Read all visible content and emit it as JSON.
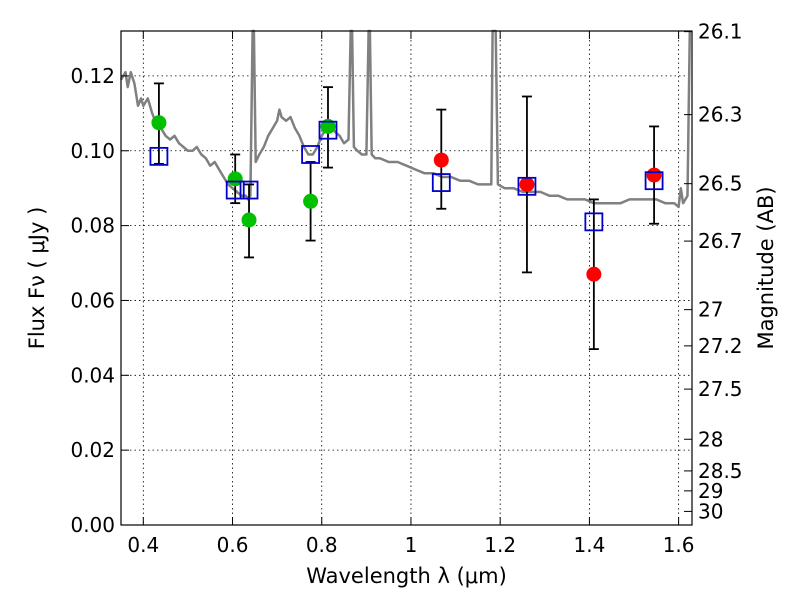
{
  "chart_data": {
    "type": "scatter",
    "title": "",
    "xlabel": "Wavelength  λ (μm)",
    "ylabel": "Flux  Fν  ( μJy )",
    "y2label": "Magnitude (AB)",
    "xlim": [
      0.35,
      1.63
    ],
    "ylim": [
      0.0,
      0.132
    ],
    "grid": true,
    "legend": "none",
    "xticks": [
      {
        "v": 0.4,
        "label": "0.4"
      },
      {
        "v": 0.6,
        "label": "0.6"
      },
      {
        "v": 0.8,
        "label": "0.8"
      },
      {
        "v": 1.0,
        "label": "1"
      },
      {
        "v": 1.2,
        "label": "1.2"
      },
      {
        "v": 1.4,
        "label": "1.4"
      },
      {
        "v": 1.6,
        "label": "1.6"
      }
    ],
    "yticks": [
      {
        "v": 0.0,
        "label": "0.00"
      },
      {
        "v": 0.02,
        "label": "0.02"
      },
      {
        "v": 0.04,
        "label": "0.04"
      },
      {
        "v": 0.06,
        "label": "0.06"
      },
      {
        "v": 0.08,
        "label": "0.08"
      },
      {
        "v": 0.1,
        "label": "0.10"
      },
      {
        "v": 0.12,
        "label": "0.12"
      }
    ],
    "mag_ticks": [
      {
        "mag": 26.1,
        "label": "26.1"
      },
      {
        "mag": 26.3,
        "label": "26.3"
      },
      {
        "mag": 26.5,
        "label": "26.5"
      },
      {
        "mag": 26.7,
        "label": "26.7"
      },
      {
        "mag": 27.0,
        "label": "27"
      },
      {
        "mag": 27.2,
        "label": "27.2"
      },
      {
        "mag": 27.5,
        "label": "27.5"
      },
      {
        "mag": 28.0,
        "label": "28"
      },
      {
        "mag": 28.5,
        "label": "28.5"
      },
      {
        "mag": 29.0,
        "label": "29"
      },
      {
        "mag": 30.0,
        "label": "30"
      }
    ],
    "model_spectrum": {
      "color": "#808080",
      "points": [
        [
          0.35,
          0.119
        ],
        [
          0.36,
          0.121
        ],
        [
          0.365,
          0.117
        ],
        [
          0.372,
          0.121
        ],
        [
          0.38,
          0.118
        ],
        [
          0.388,
          0.112
        ],
        [
          0.395,
          0.114
        ],
        [
          0.4,
          0.112
        ],
        [
          0.41,
          0.114
        ],
        [
          0.42,
          0.11
        ],
        [
          0.43,
          0.107
        ],
        [
          0.44,
          0.106
        ],
        [
          0.45,
          0.104
        ],
        [
          0.46,
          0.103
        ],
        [
          0.47,
          0.104
        ],
        [
          0.48,
          0.102
        ],
        [
          0.49,
          0.101
        ],
        [
          0.5,
          0.1
        ],
        [
          0.51,
          0.1
        ],
        [
          0.52,
          0.101
        ],
        [
          0.53,
          0.099
        ],
        [
          0.54,
          0.098
        ],
        [
          0.55,
          0.096
        ],
        [
          0.56,
          0.097
        ],
        [
          0.57,
          0.095
        ],
        [
          0.58,
          0.093
        ],
        [
          0.59,
          0.091
        ],
        [
          0.6,
          0.09
        ],
        [
          0.61,
          0.089
        ],
        [
          0.62,
          0.088
        ],
        [
          0.63,
          0.088
        ],
        [
          0.635,
          0.087
        ],
        [
          0.64,
          0.088
        ],
        [
          0.645,
          0.132
        ],
        [
          0.648,
          0.132
        ],
        [
          0.652,
          0.097
        ],
        [
          0.66,
          0.099
        ],
        [
          0.67,
          0.101
        ],
        [
          0.68,
          0.104
        ],
        [
          0.69,
          0.106
        ],
        [
          0.7,
          0.108
        ],
        [
          0.705,
          0.111
        ],
        [
          0.71,
          0.109
        ],
        [
          0.72,
          0.108
        ],
        [
          0.73,
          0.109
        ],
        [
          0.74,
          0.106
        ],
        [
          0.75,
          0.104
        ],
        [
          0.76,
          0.101
        ],
        [
          0.77,
          0.099
        ],
        [
          0.78,
          0.099
        ],
        [
          0.79,
          0.101
        ],
        [
          0.8,
          0.104
        ],
        [
          0.81,
          0.106
        ],
        [
          0.815,
          0.108
        ],
        [
          0.82,
          0.107
        ],
        [
          0.83,
          0.105
        ],
        [
          0.84,
          0.104
        ],
        [
          0.85,
          0.102
        ],
        [
          0.86,
          0.103
        ],
        [
          0.865,
          0.132
        ],
        [
          0.868,
          0.132
        ],
        [
          0.872,
          0.101
        ],
        [
          0.88,
          0.1
        ],
        [
          0.89,
          0.099
        ],
        [
          0.9,
          0.099
        ],
        [
          0.905,
          0.132
        ],
        [
          0.908,
          0.132
        ],
        [
          0.912,
          0.099
        ],
        [
          0.92,
          0.098
        ],
        [
          0.93,
          0.098
        ],
        [
          0.95,
          0.097
        ],
        [
          0.97,
          0.097
        ],
        [
          0.99,
          0.096
        ],
        [
          1.01,
          0.095
        ],
        [
          1.03,
          0.094
        ],
        [
          1.05,
          0.094
        ],
        [
          1.07,
          0.093
        ],
        [
          1.09,
          0.093
        ],
        [
          1.11,
          0.092
        ],
        [
          1.13,
          0.092
        ],
        [
          1.15,
          0.091
        ],
        [
          1.17,
          0.091
        ],
        [
          1.18,
          0.091
        ],
        [
          1.183,
          0.132
        ],
        [
          1.19,
          0.132
        ],
        [
          1.195,
          0.091
        ],
        [
          1.21,
          0.09
        ],
        [
          1.23,
          0.09
        ],
        [
          1.25,
          0.089
        ],
        [
          1.27,
          0.089
        ],
        [
          1.29,
          0.089
        ],
        [
          1.31,
          0.088
        ],
        [
          1.33,
          0.088
        ],
        [
          1.35,
          0.087
        ],
        [
          1.37,
          0.087
        ],
        [
          1.39,
          0.087
        ],
        [
          1.41,
          0.086
        ],
        [
          1.43,
          0.086
        ],
        [
          1.45,
          0.086
        ],
        [
          1.47,
          0.086
        ],
        [
          1.49,
          0.087
        ],
        [
          1.51,
          0.087
        ],
        [
          1.53,
          0.087
        ],
        [
          1.55,
          0.087
        ],
        [
          1.57,
          0.086
        ],
        [
          1.59,
          0.086
        ],
        [
          1.6,
          0.085
        ],
        [
          1.605,
          0.09
        ],
        [
          1.61,
          0.086
        ],
        [
          1.62,
          0.088
        ],
        [
          1.625,
          0.132
        ]
      ]
    },
    "model_line_spikes": [
      0.648,
      0.866,
      0.906,
      1.186,
      1.62
    ],
    "errorbars": [
      {
        "x": 0.435,
        "lo": 0.0965,
        "hi": 0.118
      },
      {
        "x": 0.606,
        "lo": 0.086,
        "hi": 0.099
      },
      {
        "x": 0.637,
        "lo": 0.0715,
        "hi": 0.091
      },
      {
        "x": 0.775,
        "lo": 0.076,
        "hi": 0.097
      },
      {
        "x": 0.814,
        "lo": 0.0955,
        "hi": 0.117
      },
      {
        "x": 1.068,
        "lo": 0.0845,
        "hi": 0.111
      },
      {
        "x": 1.26,
        "lo": 0.0675,
        "hi": 0.1145
      },
      {
        "x": 1.41,
        "lo": 0.047,
        "hi": 0.087
      },
      {
        "x": 1.545,
        "lo": 0.0805,
        "hi": 0.1065
      }
    ],
    "series": [
      {
        "marker": "circle",
        "color": "#00c000",
        "x": [
          0.435,
          0.606,
          0.637,
          0.775,
          0.814
        ],
        "y": [
          0.1075,
          0.0925,
          0.0815,
          0.0865,
          0.1065
        ]
      },
      {
        "marker": "circle",
        "color": "#ff0000",
        "x": [
          1.068,
          1.26,
          1.41,
          1.545
        ],
        "y": [
          0.0975,
          0.091,
          0.067,
          0.0935
        ]
      },
      {
        "marker": "square-open",
        "color": "#0000cc",
        "x": [
          0.435,
          0.606,
          0.637,
          0.775,
          0.814,
          1.068,
          1.26,
          1.41,
          1.545
        ],
        "y": [
          0.0985,
          0.0895,
          0.0895,
          0.099,
          0.1055,
          0.0915,
          0.0905,
          0.081,
          0.092
        ]
      }
    ]
  }
}
